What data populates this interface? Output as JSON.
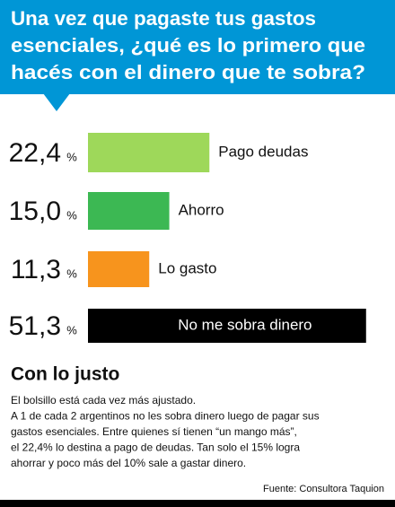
{
  "chart_data": {
    "type": "bar",
    "orientation": "horizontal",
    "title": [
      "Una vez que pagaste tus  gastos",
      "esenciales, ¿qué es lo primero que",
      "hacés con el dinero que te sobra?"
    ],
    "categories": [
      "Pago deudas",
      "Ahorro",
      "Lo gasto",
      "No me sobra dinero"
    ],
    "values": [
      22.4,
      15.0,
      11.3,
      51.3
    ],
    "value_labels": [
      "22,4",
      "15,0",
      "11,3",
      "51,3"
    ],
    "unit": "%",
    "colors": [
      "#9ed85a",
      "#3cb853",
      "#f7941d",
      "#000000"
    ],
    "xlim": [
      0,
      52
    ],
    "subtitle": "Con lo justo",
    "body": [
      "El bolsillo está cada vez más ajustado.",
      "A 1 de cada 2 argentinos no les sobra dinero luego de pagar sus",
      "gastos esenciales. Entre quienes sí tienen “un mango más”,",
      "el 22,4% lo destina a pago de deudas. Tan solo el 15% logra",
      "ahorrar y poco más del 10% sale a gastar dinero."
    ],
    "source": "Fuente: Consultora Taquion"
  }
}
